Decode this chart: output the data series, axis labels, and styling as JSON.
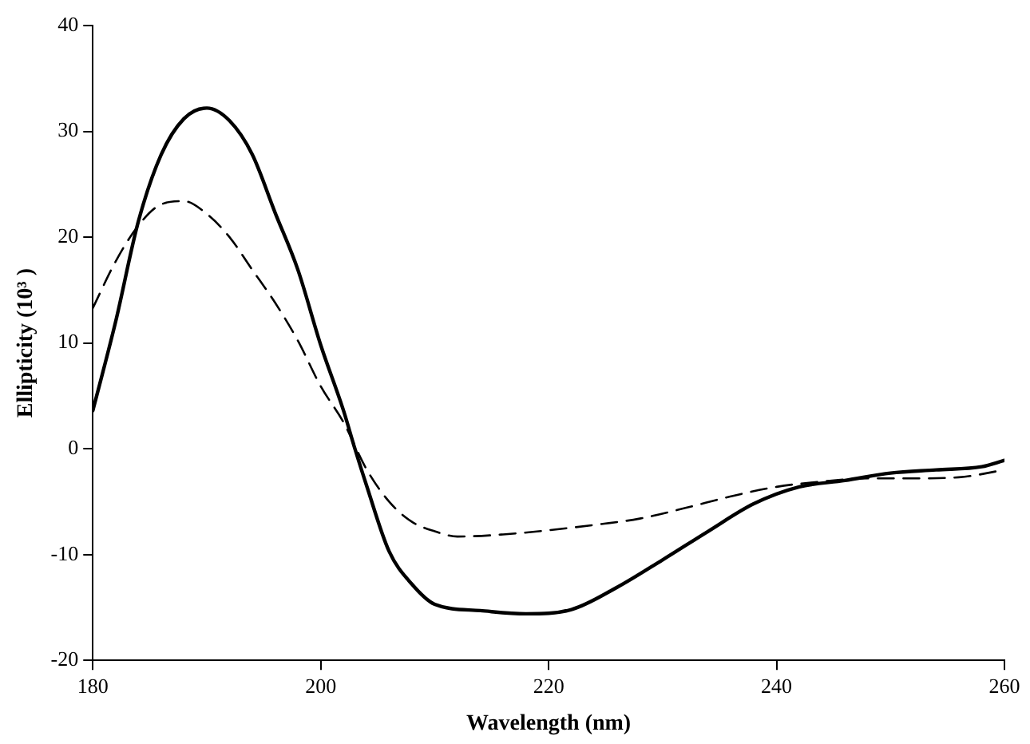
{
  "chart_data": {
    "type": "line",
    "xlabel": "Wavelength (nm)",
    "ylabel": "Ellipticity (10³ )",
    "xlim": [
      180,
      260
    ],
    "xticks": [
      180,
      200,
      220,
      240,
      260
    ],
    "ylim": [
      -20,
      40
    ],
    "yticks": [
      -20,
      -10,
      0,
      10,
      20,
      30,
      40
    ],
    "grid": false,
    "legend": false,
    "marker": "none",
    "series": [
      {
        "color": "#000000",
        "line_style": "solid",
        "x": [
          180,
          182,
          184,
          186,
          188,
          190,
          192,
          194,
          196,
          198,
          200,
          202,
          203,
          204,
          206,
          208,
          210,
          214,
          218,
          222,
          226,
          230,
          234,
          238,
          242,
          246,
          250,
          254,
          258,
          260
        ],
        "values": [
          3.6,
          12,
          21.5,
          27.8,
          31.2,
          32.2,
          31,
          27.8,
          22.3,
          16.9,
          9.8,
          3.6,
          0,
          -3.4,
          -9.7,
          -12.8,
          -14.7,
          -15.3,
          -15.6,
          -15.2,
          -13.1,
          -10.5,
          -7.8,
          -5.2,
          -3.6,
          -3,
          -2.3,
          -2,
          -1.7,
          -1.1
        ]
      },
      {
        "color": "#000000",
        "line_style": "dashed",
        "x": [
          180,
          182,
          184,
          186,
          188,
          190,
          192,
          194,
          196,
          198,
          200,
          202,
          204,
          206,
          208,
          210,
          212,
          216,
          220,
          224,
          228,
          232,
          236,
          240,
          244,
          248,
          252,
          256,
          260
        ],
        "values": [
          13.3,
          17.7,
          21.1,
          23.1,
          23.4,
          22.2,
          20,
          16.9,
          13.8,
          10.2,
          5.9,
          2.5,
          -1.9,
          -5,
          -6.9,
          -7.8,
          -8.3,
          -8.1,
          -7.7,
          -7.2,
          -6.6,
          -5.6,
          -4.5,
          -3.6,
          -3.1,
          -2.8,
          -2.8,
          -2.7,
          -2
        ]
      }
    ]
  }
}
